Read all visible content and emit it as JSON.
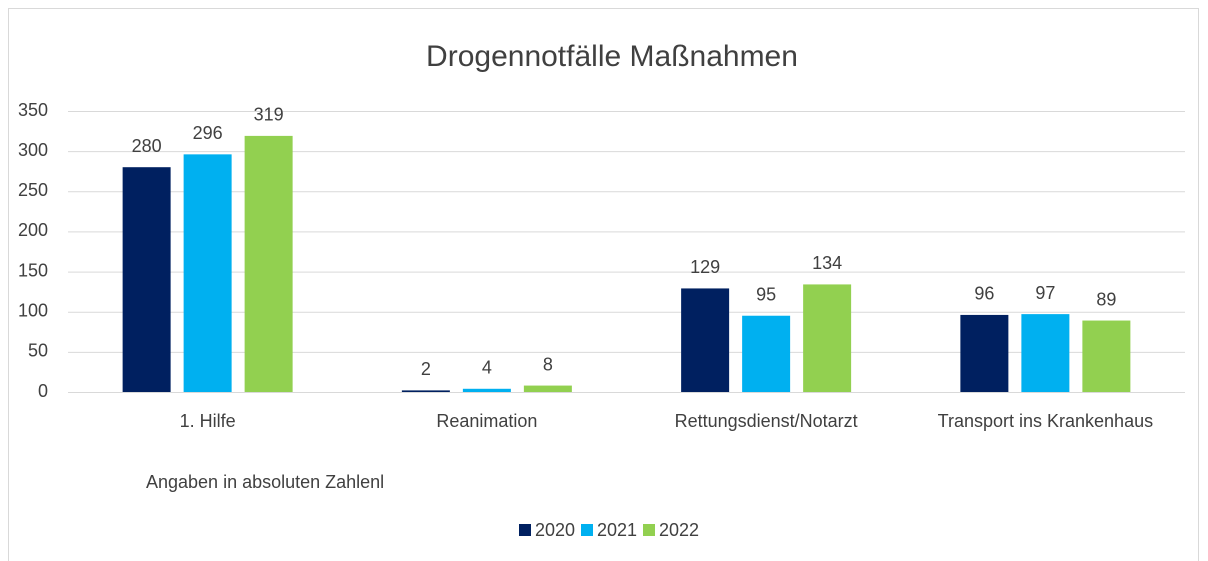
{
  "chart_data": {
    "type": "bar",
    "title": "Drogennotfälle Maßnahmen",
    "categories": [
      "1. Hilfe",
      "Reanimation",
      "Rettungsdienst/Notarzt",
      "Transport ins Krankenhaus"
    ],
    "series": [
      {
        "name": "2020",
        "color": "#002060",
        "values": [
          280,
          2,
          129,
          96
        ]
      },
      {
        "name": "2021",
        "color": "#00b0f0",
        "values": [
          296,
          4,
          95,
          97
        ]
      },
      {
        "name": "2022",
        "color": "#92d050",
        "values": [
          319,
          8,
          134,
          89
        ]
      }
    ],
    "ylim": [
      0,
      350
    ],
    "yticks": [
      0,
      50,
      100,
      150,
      200,
      250,
      300,
      350
    ],
    "grid": true,
    "annotation": "Angaben in absoluten Zahlenl",
    "legend": "bottom"
  }
}
